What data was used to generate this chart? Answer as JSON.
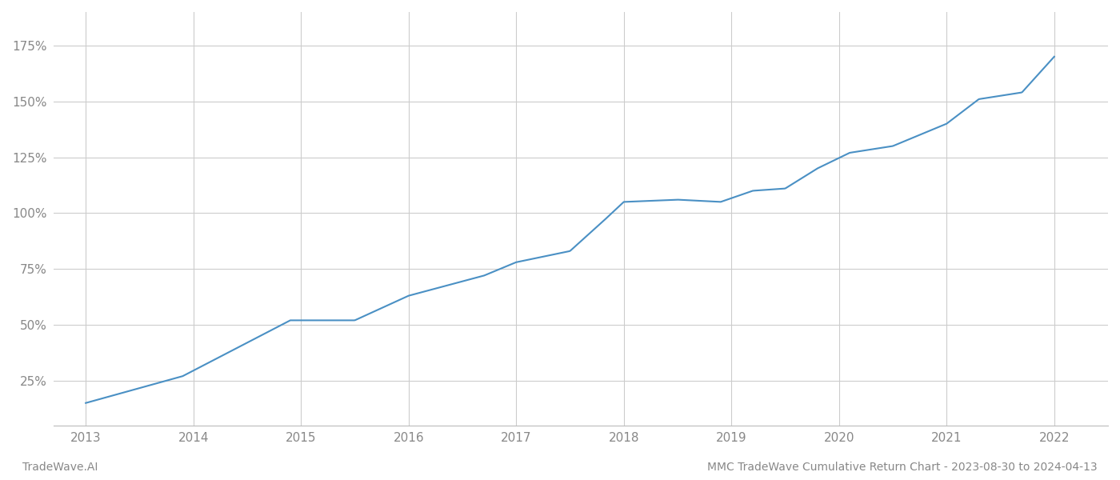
{
  "title": "MMC TradeWave Cumulative Return Chart - 2023-08-30 to 2024-04-13",
  "watermark_left": "TradeWave.AI",
  "x_years": [
    2013,
    2014,
    2015,
    2016,
    2017,
    2018,
    2019,
    2020,
    2021,
    2022
  ],
  "key_points": [
    [
      2013.0,
      15
    ],
    [
      2013.9,
      27
    ],
    [
      2014.9,
      52
    ],
    [
      2015.5,
      52
    ],
    [
      2016.0,
      63
    ],
    [
      2016.7,
      72
    ],
    [
      2017.0,
      78
    ],
    [
      2017.5,
      83
    ],
    [
      2017.8,
      96
    ],
    [
      2018.0,
      105
    ],
    [
      2018.5,
      106
    ],
    [
      2018.9,
      105
    ],
    [
      2019.2,
      110
    ],
    [
      2019.5,
      111
    ],
    [
      2019.8,
      120
    ],
    [
      2020.1,
      127
    ],
    [
      2020.5,
      130
    ],
    [
      2021.0,
      140
    ],
    [
      2021.3,
      151
    ],
    [
      2021.7,
      154
    ],
    [
      2022.0,
      170
    ]
  ],
  "line_color": "#4a90c4",
  "line_width": 1.5,
  "yticks": [
    25,
    50,
    75,
    100,
    125,
    150,
    175
  ],
  "ylim": [
    5,
    190
  ],
  "xlim": [
    2012.7,
    2022.5
  ],
  "bg_color": "#ffffff",
  "grid_color": "#cccccc",
  "axis_label_color": "#888888",
  "footer_color": "#888888",
  "footer_fontsize": 10,
  "tick_fontsize": 11
}
